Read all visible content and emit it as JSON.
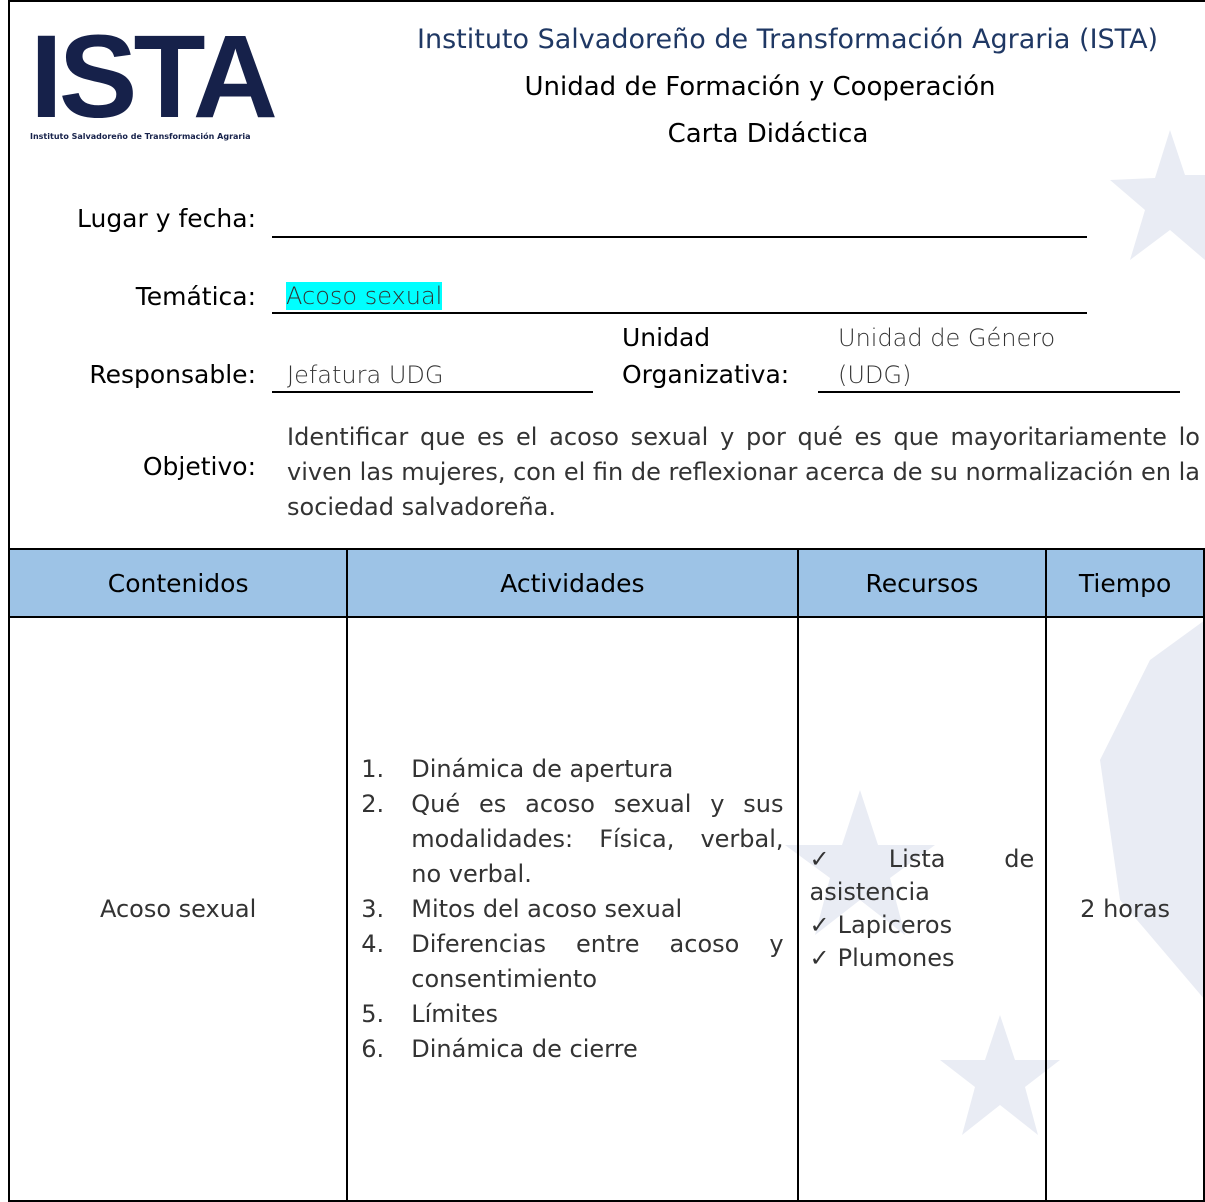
{
  "header": {
    "logo_text": "ISTA",
    "logo_caption": "Instituto Salvadoreño de Transformación Agraria",
    "title": "Instituto Salvadoreño de Transformación Agraria (ISTA)",
    "subtitle": "Unidad de Formación y Cooperación",
    "doc_type": "Carta Didáctica"
  },
  "fields": {
    "lugar_fecha": {
      "label": "Lugar y fecha:"
    },
    "tematica": {
      "label": "Temática:",
      "value": "Acoso sexual"
    },
    "responsable": {
      "label": "Responsable:",
      "value": "Jefatura UDG"
    },
    "unidad": {
      "label_lines": [
        "Unidad",
        "Organizativa:"
      ],
      "value_lines": [
        "Unidad de Género",
        "(UDG)"
      ]
    },
    "objetivo": {
      "label": "Objetivo:",
      "value": "Identificar que es el acoso sexual y por qué es que mayoritariamente lo viven las mujeres, con el fin de reflexionar acerca de su normalización en la sociedad salvadoreña."
    }
  },
  "table": {
    "headers": [
      "Contenidos",
      "Actividades",
      "Recursos",
      "Tiempo"
    ],
    "rows": [
      {
        "contenidos": "Acoso sexual",
        "actividades": [
          {
            "marker": "1.",
            "text": "Dinámica de apertura"
          },
          {
            "marker": "2.",
            "text": "Qué es acoso sexual y sus modalidades: Física, verbal, no verbal."
          },
          {
            "marker": "3.",
            "text": "Mitos del acoso sexual"
          },
          {
            "marker": "4.",
            "text": "Diferencias entre acoso y consentimiento"
          },
          {
            "marker": "5.",
            "text": "Límites"
          },
          {
            "marker": "6.",
            "text": "Dinámica de cierre"
          }
        ],
        "recursos": [
          "Lista de asistencia",
          "Lapiceros",
          "Plumones"
        ],
        "tiempo": "2 horas"
      }
    ]
  }
}
